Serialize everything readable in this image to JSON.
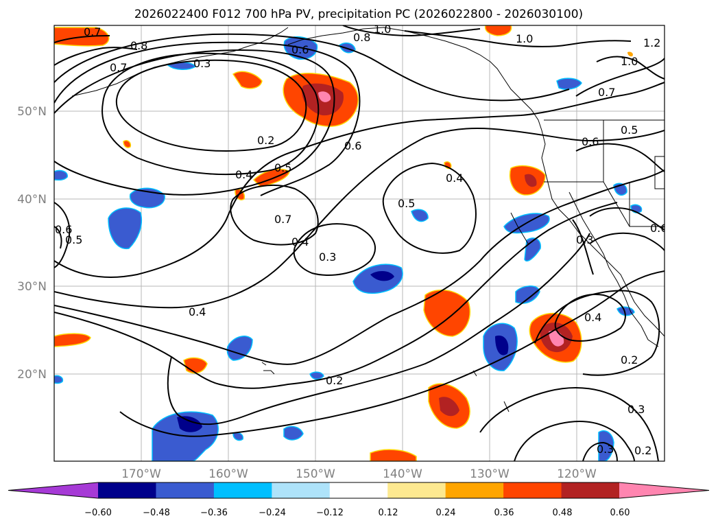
{
  "title": "2026022400 F012 700 hPa PV, precipitation PC (2026022800 - 2026030100)",
  "lat_labels": [
    "50°N",
    "40°N",
    "30°N",
    "20°N"
  ],
  "lon_labels": [
    "170°W",
    "160°W",
    "150°W",
    "140°W",
    "130°W",
    "120°W"
  ],
  "contour_labels": [
    "0.7",
    "0.8",
    "1.0",
    "0.8",
    "1.0",
    "1.2",
    "1.0",
    "0.7",
    "0.6",
    "0.7",
    "0.3",
    "0.2",
    "0.4",
    "0.5",
    "0.6",
    "0.4",
    "0.5",
    "0.7",
    "0.4",
    "0.3",
    "0.6",
    "0.5",
    "0.3",
    "0.4",
    "0.6",
    "0.5",
    "0.6",
    "0.4",
    "0.2",
    "0.2",
    "0.3",
    "0.3",
    "0.2"
  ],
  "colorbar": {
    "ticks": [
      "−0.60",
      "−0.48",
      "−0.36",
      "−0.24",
      "−0.12",
      "0.12",
      "0.24",
      "0.36",
      "0.48",
      "0.60"
    ],
    "colors": [
      "#a63ad6",
      "#00008b",
      "#3a5bd0",
      "#00bfff",
      "#aee3fa",
      "#ffffff",
      "#fde990",
      "#ffa500",
      "#ff4500",
      "#b22222",
      "#ff85b0"
    ]
  }
}
